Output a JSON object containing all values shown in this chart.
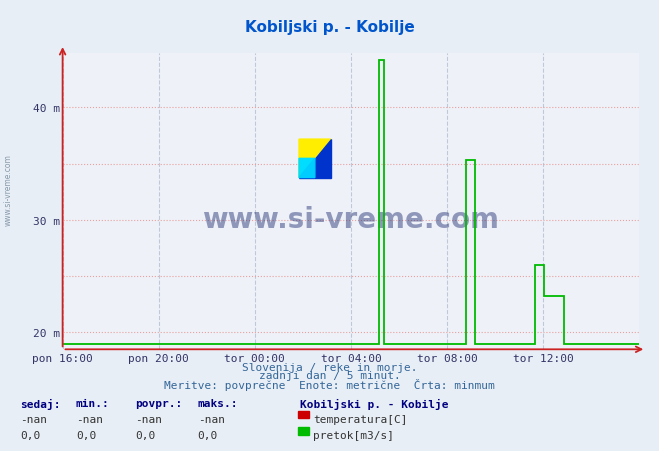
{
  "title": "Kobiljski p. - Kobilje",
  "title_color": "#0055cc",
  "bg_color": "#e8eef5",
  "plot_bg_color": "#eef2f8",
  "xlabel_ticks": [
    "pon 16:00",
    "pon 20:00",
    "tor 00:00",
    "tor 04:00",
    "tor 08:00",
    "tor 12:00"
  ],
  "xlabel_tick_x": [
    0.0,
    0.1667,
    0.3333,
    0.5,
    0.6667,
    0.8333
  ],
  "ylabel_ticks": [
    20,
    30,
    40
  ],
  "ylabel_labels": [
    "20 m",
    "30 m",
    "40 m"
  ],
  "ymin": 18.5,
  "ymax": 44.8,
  "xmin": 0.0,
  "xmax": 1.0,
  "flow_color": "#00bb00",
  "temp_color": "#cc0000",
  "footer_line1": "Slovenija / reke in morje.",
  "footer_line2": "zadnji dan / 5 minut.",
  "footer_line3": "Meritve: povprečne  Enote: metrične  Črta: minmum",
  "legend_title": "Kobiljski p. - Kobilje",
  "legend_temp": "temperatura[C]",
  "legend_flow": "pretok[m3/s]",
  "stats_headers": [
    "sedaj:",
    "min.:",
    "povpr.:",
    "maks.:"
  ],
  "stats_temp": [
    "-nan",
    "-nan",
    "-nan",
    "-nan"
  ],
  "stats_flow": [
    "0,0",
    "0,0",
    "0,0",
    "0,0"
  ],
  "watermark_text": "www.si-vreme.com",
  "grid_v_color": "#c0c8d8",
  "grid_h_color": "#e8a0a0",
  "flow_x": [
    0.0,
    0.548,
    0.548,
    0.558,
    0.558,
    0.7,
    0.7,
    0.715,
    0.715,
    0.82,
    0.82,
    0.835,
    0.835,
    0.87,
    0.87,
    1.0
  ],
  "flow_y": [
    19.0,
    19.0,
    44.2,
    44.2,
    19.0,
    19.0,
    35.3,
    35.3,
    19.0,
    19.0,
    26.0,
    26.0,
    23.2,
    23.2,
    19.0,
    19.0
  ]
}
